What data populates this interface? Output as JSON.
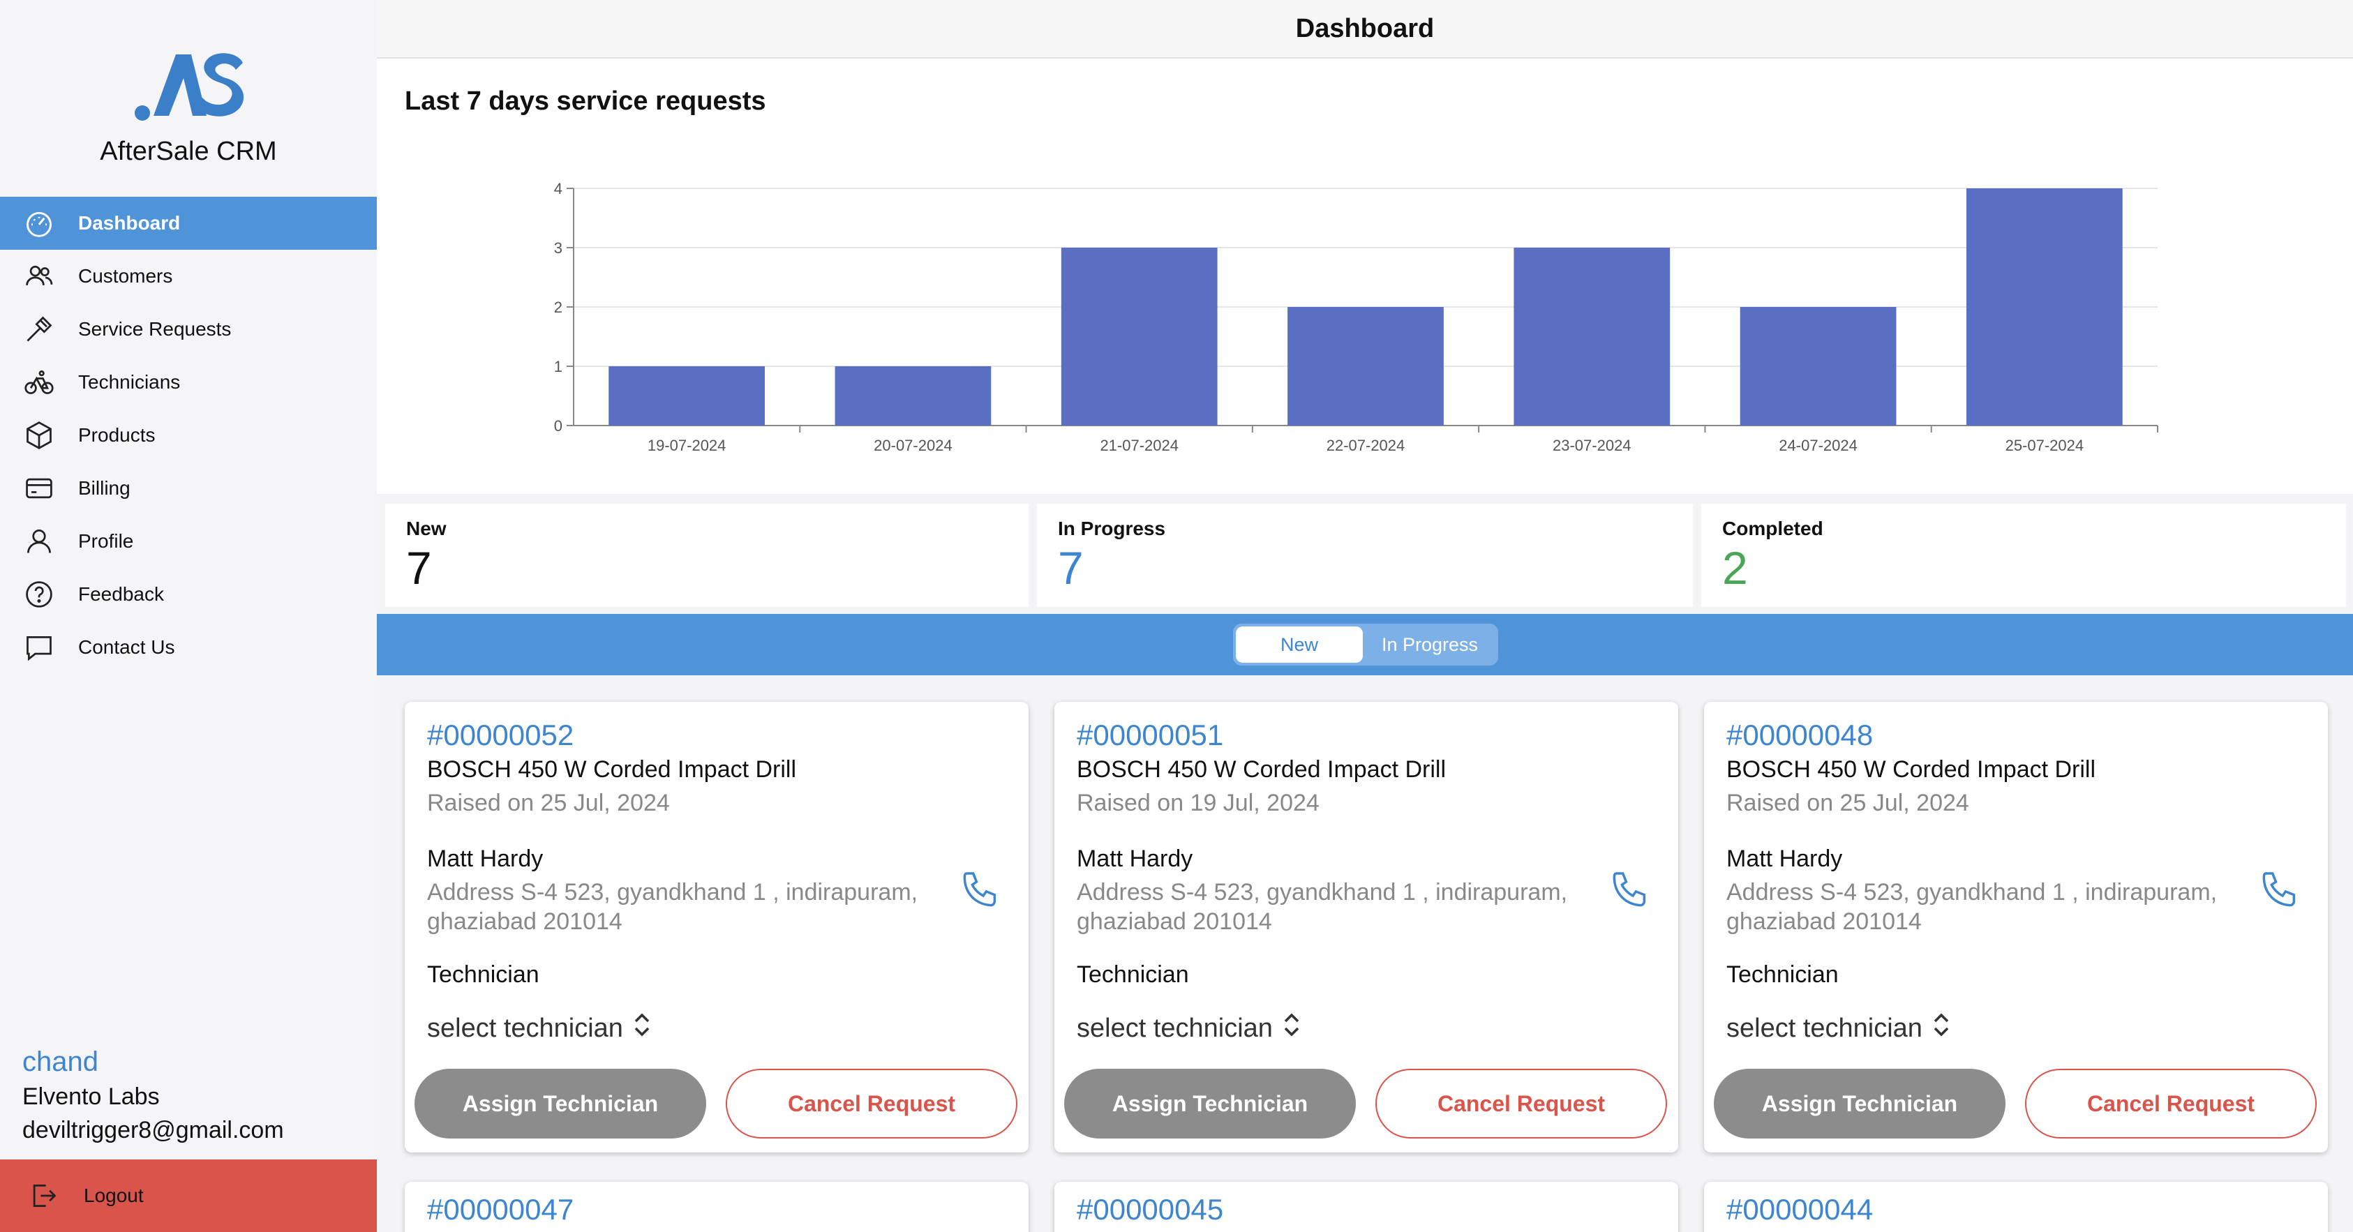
{
  "app": {
    "name": "AfterSale CRM",
    "logo_text": ".AS"
  },
  "header": {
    "title": "Dashboard"
  },
  "sidebar": {
    "items": [
      {
        "label": "Dashboard",
        "icon": "gauge-icon",
        "active": true
      },
      {
        "label": "Customers",
        "icon": "users-icon"
      },
      {
        "label": "Service Requests",
        "icon": "hammer-icon"
      },
      {
        "label": "Technicians",
        "icon": "bicycle-icon"
      },
      {
        "label": "Products",
        "icon": "box-icon"
      },
      {
        "label": "Billing",
        "icon": "credit-card-icon"
      },
      {
        "label": "Profile",
        "icon": "user-icon"
      },
      {
        "label": "Feedback",
        "icon": "question-circle-icon"
      },
      {
        "label": "Contact Us",
        "icon": "chat-bubble-icon"
      }
    ],
    "user": {
      "name": "chand",
      "org": "Elvento Labs",
      "email": "deviltrigger8@gmail.com"
    },
    "logout_label": "Logout"
  },
  "chart_data": {
    "type": "bar",
    "title": "Last 7 days service requests",
    "categories": [
      "19-07-2024",
      "20-07-2024",
      "21-07-2024",
      "22-07-2024",
      "23-07-2024",
      "24-07-2024",
      "25-07-2024"
    ],
    "values": [
      1,
      1,
      3,
      2,
      3,
      2,
      4
    ],
    "ylim": [
      0,
      4
    ],
    "yticks": [
      0,
      1,
      2,
      3,
      4
    ],
    "xlabel": "",
    "ylabel": "",
    "grid": true,
    "bar_color": "#5b6fc2"
  },
  "stats": [
    {
      "label": "New",
      "value": "7",
      "color": "#111111"
    },
    {
      "label": "In Progress",
      "value": "7",
      "color": "#3d86cf"
    },
    {
      "label": "Completed",
      "value": "2",
      "color": "#4aa657"
    }
  ],
  "tabs": {
    "new_label": "New",
    "inprogress_label": "In Progress",
    "selected": "New"
  },
  "card_labels": {
    "technician": "Technician",
    "select_placeholder": "select technician",
    "assign": "Assign Technician",
    "cancel": "Cancel Request"
  },
  "requests": [
    {
      "id": "#00000052",
      "product": "BOSCH 450 W Corded Impact Drill",
      "raised": "Raised on 25 Jul, 2024",
      "customer": "Matt Hardy",
      "address": "Address S-4 523, gyandkhand 1 , indirapuram, ghaziabad 201014"
    },
    {
      "id": "#00000051",
      "product": "BOSCH 450 W Corded Impact Drill",
      "raised": "Raised on 19 Jul, 2024",
      "customer": "Matt Hardy",
      "address": "Address S-4 523, gyandkhand 1 , indirapuram, ghaziabad 201014"
    },
    {
      "id": "#00000048",
      "product": "BOSCH 450 W Corded Impact Drill",
      "raised": "Raised on 25 Jul, 2024",
      "customer": "Matt Hardy",
      "address": "Address S-4 523, gyandkhand 1 , indirapuram, ghaziabad 201014"
    },
    {
      "id": "#00000047"
    },
    {
      "id": "#00000045"
    },
    {
      "id": "#00000044"
    }
  ]
}
